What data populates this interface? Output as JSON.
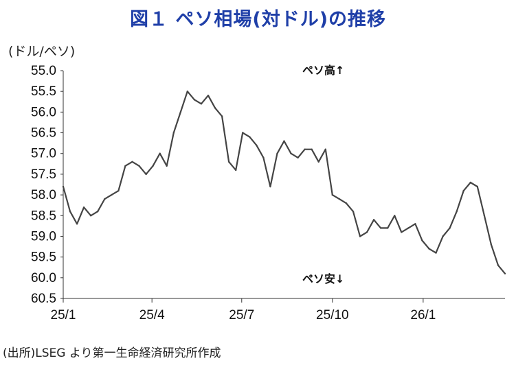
{
  "chart_data": {
    "type": "line",
    "title": "図１ ペソ相場(対ドル)の推移",
    "unit_label": "(ドル/ペソ)",
    "source": "(出所)LSEG より第一生命経済研究所作成",
    "annotations": {
      "top": "ペソ高↑",
      "bottom": "ペソ安↓"
    },
    "y_reversed": true,
    "ylim": [
      55.0,
      60.5
    ],
    "y_ticks": [
      "55.0",
      "55.5",
      "56.0",
      "56.5",
      "57.0",
      "57.5",
      "58.0",
      "58.5",
      "59.0",
      "59.5",
      "60.0",
      "60.5"
    ],
    "x_ticks": [
      "25/1",
      "25/4",
      "25/7",
      "25/10",
      "26/1"
    ],
    "grid": false,
    "series": [
      {
        "color": "#444444",
        "x": [
          "2025-01-01",
          "2025-01-08",
          "2025-01-15",
          "2025-01-22",
          "2025-01-29",
          "2025-02-05",
          "2025-02-12",
          "2025-02-19",
          "2025-02-26",
          "2025-03-05",
          "2025-03-12",
          "2025-03-19",
          "2025-03-26",
          "2025-04-02",
          "2025-04-09",
          "2025-04-16",
          "2025-04-23",
          "2025-04-30",
          "2025-05-07",
          "2025-05-14",
          "2025-05-21",
          "2025-05-28",
          "2025-06-04",
          "2025-06-11",
          "2025-06-18",
          "2025-06-25",
          "2025-07-02",
          "2025-07-09",
          "2025-07-16",
          "2025-07-23",
          "2025-07-30",
          "2025-08-06",
          "2025-08-13",
          "2025-08-20",
          "2025-08-27",
          "2025-09-03",
          "2025-09-10",
          "2025-09-17",
          "2025-09-24",
          "2025-10-01",
          "2025-10-08",
          "2025-10-15",
          "2025-10-22",
          "2025-10-29",
          "2025-11-05",
          "2025-11-12",
          "2025-11-19",
          "2025-11-26",
          "2025-12-03",
          "2025-12-10",
          "2025-12-17",
          "2025-12-24",
          "2025-12-31",
          "2026-01-07",
          "2026-01-14",
          "2026-01-21",
          "2026-01-28",
          "2026-02-04",
          "2026-02-11",
          "2026-02-18",
          "2026-02-25",
          "2026-03-04",
          "2026-03-11",
          "2026-03-18",
          "2026-03-25"
        ],
        "values": [
          57.8,
          58.4,
          58.7,
          58.3,
          58.5,
          58.4,
          58.1,
          58.0,
          57.9,
          57.3,
          57.2,
          57.3,
          57.5,
          57.3,
          57.0,
          57.3,
          56.5,
          56.0,
          55.5,
          55.7,
          55.8,
          55.6,
          55.9,
          56.1,
          57.2,
          57.4,
          56.5,
          56.6,
          56.8,
          57.1,
          57.8,
          57.0,
          56.7,
          57.0,
          57.1,
          56.9,
          56.9,
          57.2,
          56.9,
          58.0,
          58.1,
          58.2,
          58.4,
          59.0,
          58.9,
          58.6,
          58.8,
          58.8,
          58.5,
          58.9,
          58.8,
          58.7,
          59.1,
          59.3,
          59.4,
          59.0,
          58.8,
          58.4,
          57.9,
          57.7,
          57.8,
          58.5,
          59.2,
          59.7,
          59.9
        ]
      }
    ]
  }
}
